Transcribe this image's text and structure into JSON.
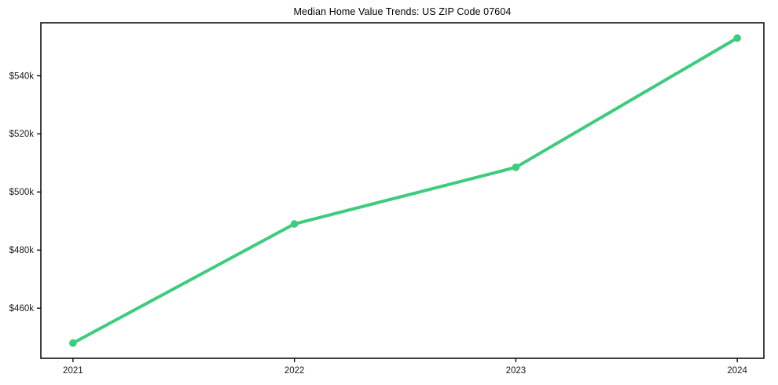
{
  "page": {
    "background_color": "#ffffff"
  },
  "chart_data": {
    "type": "line",
    "title": "Median Home Value Trends: US ZIP Code 07604",
    "x": [
      2021,
      2022,
      2023,
      2024
    ],
    "x_tick_labels": [
      "2021",
      "2022",
      "2023",
      "2024"
    ],
    "series": [
      {
        "name": "Median Home Value",
        "values": [
          448000,
          489000,
          508500,
          553000
        ]
      }
    ],
    "y_tick_values": [
      460000,
      480000,
      500000,
      520000,
      540000
    ],
    "y_tick_labels": [
      "$460k",
      "$480k",
      "$500k",
      "$520k",
      "$540k"
    ],
    "xlim": [
      2020.855,
      2024.12
    ],
    "ylim": [
      442750,
      558250
    ],
    "grid": false,
    "legend_position": "none",
    "line_color": "#3dcc7e",
    "marker": "circle",
    "axis_color": "#000000",
    "tick_label_color": "#1a1a1a"
  }
}
